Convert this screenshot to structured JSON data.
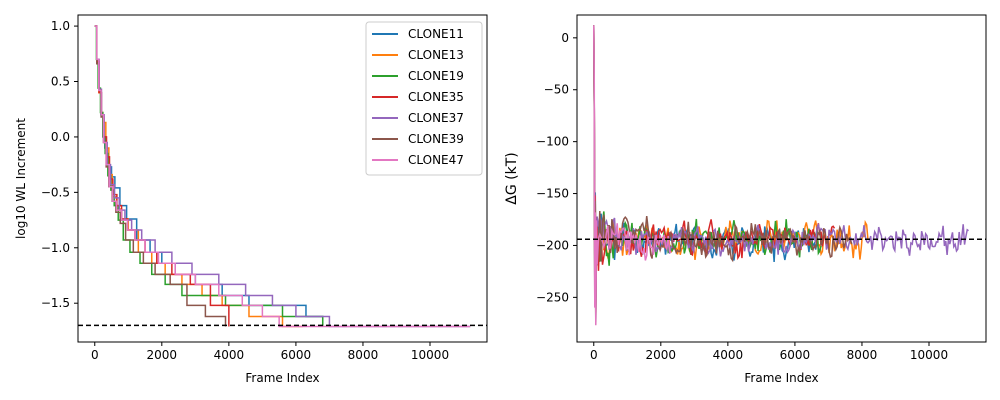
{
  "chart_data": [
    {
      "type": "line",
      "xlabel": "Frame Index",
      "ylabel": "log10 WL Increment",
      "xlim": [
        -500,
        11700
      ],
      "ylim": [
        -1.85,
        1.1
      ],
      "xticks": [
        0,
        2000,
        4000,
        6000,
        8000,
        10000
      ],
      "xtick_labels": [
        "0",
        "2000",
        "4000",
        "6000",
        "8000",
        "10000"
      ],
      "yticks": [
        1.0,
        0.5,
        0.0,
        -0.5,
        -1.0,
        -1.5
      ],
      "ytick_labels": [
        "1.0",
        "0.5",
        "0.0",
        "−0.5",
        "−1.0",
        "−1.5"
      ],
      "hline": -1.7,
      "legend_position": "top-right",
      "series": [
        {
          "name": "CLONE11",
          "color": "#1f77b4",
          "step": true,
          "x": [
            0,
            60,
            120,
            180,
            240,
            300,
            360,
            420,
            500,
            600,
            750,
            950,
            1250,
            1650,
            2000,
            2400,
            3000,
            3800,
            4600,
            6300,
            6800
          ],
          "values": [
            1.0,
            0.7,
            0.42,
            0.2,
            0.0,
            -0.1,
            -0.2,
            -0.27,
            -0.36,
            -0.46,
            -0.62,
            -0.74,
            -0.93,
            -1.04,
            -1.14,
            -1.24,
            -1.33,
            -1.43,
            -1.52,
            -1.62,
            -1.71
          ]
        },
        {
          "name": "CLONE13",
          "color": "#ff7f0e",
          "step": true,
          "x": [
            0,
            60,
            120,
            180,
            240,
            330,
            420,
            520,
            650,
            800,
            1000,
            1300,
            1700,
            2100,
            2600,
            3200,
            3800,
            4600,
            5600,
            6200
          ],
          "values": [
            1.0,
            0.66,
            0.4,
            0.22,
            0.13,
            -0.1,
            -0.34,
            -0.54,
            -0.65,
            -0.74,
            -0.84,
            -1.04,
            -1.14,
            -1.24,
            -1.33,
            -1.43,
            -1.52,
            -1.62,
            -1.71,
            -1.71
          ]
        },
        {
          "name": "CLONE19",
          "color": "#2ca02c",
          "step": true,
          "x": [
            0,
            50,
            100,
            170,
            240,
            310,
            390,
            480,
            580,
            700,
            850,
            1050,
            1350,
            1700,
            2100,
            2600,
            3200,
            3900,
            4700,
            5600,
            6800
          ],
          "values": [
            1.0,
            0.7,
            0.44,
            0.22,
            0.0,
            -0.15,
            -0.35,
            -0.48,
            -0.62,
            -0.75,
            -0.93,
            -1.04,
            -1.14,
            -1.24,
            -1.33,
            -1.43,
            -1.43,
            -1.52,
            -1.52,
            -1.62,
            -1.71
          ]
        },
        {
          "name": "CLONE35",
          "color": "#d62728",
          "step": true,
          "x": [
            0,
            60,
            130,
            200,
            270,
            350,
            440,
            540,
            660,
            800,
            980,
            1200,
            1500,
            1850,
            2300,
            2850,
            3450,
            4000
          ],
          "values": [
            1.0,
            0.68,
            0.4,
            0.2,
            0.0,
            -0.18,
            -0.38,
            -0.52,
            -0.62,
            -0.74,
            -0.84,
            -0.93,
            -1.04,
            -1.14,
            -1.24,
            -1.33,
            -1.52,
            -1.71
          ]
        },
        {
          "name": "CLONE37",
          "color": "#9467bd",
          "step": true,
          "x": [
            0,
            60,
            130,
            200,
            280,
            370,
            470,
            590,
            730,
            900,
            1100,
            1400,
            1800,
            2300,
            2900,
            3700,
            4500,
            5300,
            6000,
            7000,
            11200
          ],
          "values": [
            1.0,
            0.7,
            0.43,
            0.2,
            -0.05,
            -0.25,
            -0.43,
            -0.55,
            -0.66,
            -0.75,
            -0.84,
            -0.93,
            -1.04,
            -1.14,
            -1.24,
            -1.33,
            -1.43,
            -1.52,
            -1.62,
            -1.71,
            -1.71
          ]
        },
        {
          "name": "CLONE39",
          "color": "#8c564b",
          "step": true,
          "x": [
            0,
            60,
            120,
            190,
            260,
            340,
            420,
            520,
            630,
            760,
            920,
            1150,
            1450,
            1800,
            2250,
            2750,
            3300,
            3900
          ],
          "values": [
            1.0,
            0.66,
            0.42,
            0.18,
            -0.05,
            -0.27,
            -0.45,
            -0.58,
            -0.68,
            -0.78,
            -0.93,
            -1.04,
            -1.14,
            -1.24,
            -1.33,
            -1.52,
            -1.62,
            -1.71
          ]
        },
        {
          "name": "CLONE47",
          "color": "#e377c2",
          "step": true,
          "x": [
            0,
            60,
            120,
            190,
            260,
            340,
            430,
            530,
            650,
            800,
            980,
            1200,
            1500,
            1900,
            2400,
            3000,
            3700,
            4400,
            5000,
            5500,
            11200
          ],
          "values": [
            1.0,
            0.7,
            0.42,
            0.2,
            -0.05,
            -0.25,
            -0.45,
            -0.58,
            -0.66,
            -0.75,
            -0.84,
            -0.93,
            -1.04,
            -1.14,
            -1.24,
            -1.33,
            -1.43,
            -1.52,
            -1.62,
            -1.71,
            -1.71
          ]
        }
      ]
    },
    {
      "type": "line",
      "xlabel": "Frame Index",
      "ylabel": "ΔG (kT)",
      "xlim": [
        -500,
        11700
      ],
      "ylim": [
        -293,
        22
      ],
      "xticks": [
        0,
        2000,
        4000,
        6000,
        8000,
        10000
      ],
      "xtick_labels": [
        "0",
        "2000",
        "4000",
        "6000",
        "8000",
        "10000"
      ],
      "yticks": [
        0,
        -50,
        -100,
        -150,
        -200,
        -250
      ],
      "ytick_labels": [
        "0",
        "−50",
        "−100",
        "−150",
        "−200",
        "−250"
      ],
      "hline": -194,
      "series": [
        {
          "name": "CLONE11",
          "color": "#1f77b4",
          "end": 6800,
          "amp": 10,
          "seed": 11
        },
        {
          "name": "CLONE13",
          "color": "#ff7f0e",
          "end": 8200,
          "amp": 9,
          "seed": 13
        },
        {
          "name": "CLONE19",
          "color": "#2ca02c",
          "end": 6800,
          "amp": 10,
          "seed": 19
        },
        {
          "name": "CLONE35",
          "color": "#d62728",
          "end": 7200,
          "amp": 8,
          "seed": 35
        },
        {
          "name": "CLONE37",
          "color": "#9467bd",
          "end": 11200,
          "amp": 8,
          "seed": 37
        },
        {
          "name": "CLONE39",
          "color": "#8c564b",
          "end": 7700,
          "amp": 9,
          "seed": 39
        },
        {
          "name": "CLONE47",
          "color": "#e377c2",
          "end": 2300,
          "amp": 12,
          "seed": 47
        }
      ]
    }
  ]
}
